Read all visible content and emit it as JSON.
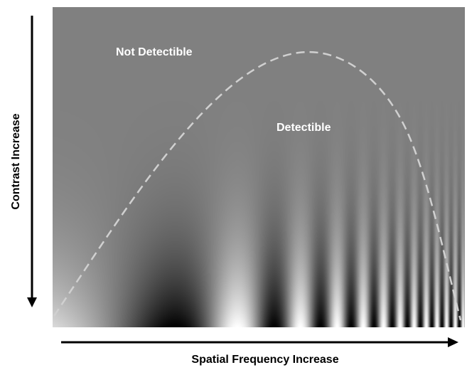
{
  "diagram": {
    "labels": {
      "upper_region": "Not Detectible",
      "lower_region": "Detectible",
      "x_axis": "Spatial Frequency Increase",
      "y_axis": "Contrast Increase"
    },
    "colors": {
      "background_gray": "#808080",
      "threshold_curve": "#d0d0d0",
      "text_on_image": "#ffffff",
      "axis_text": "#000000",
      "arrow": "#000000"
    }
  }
}
